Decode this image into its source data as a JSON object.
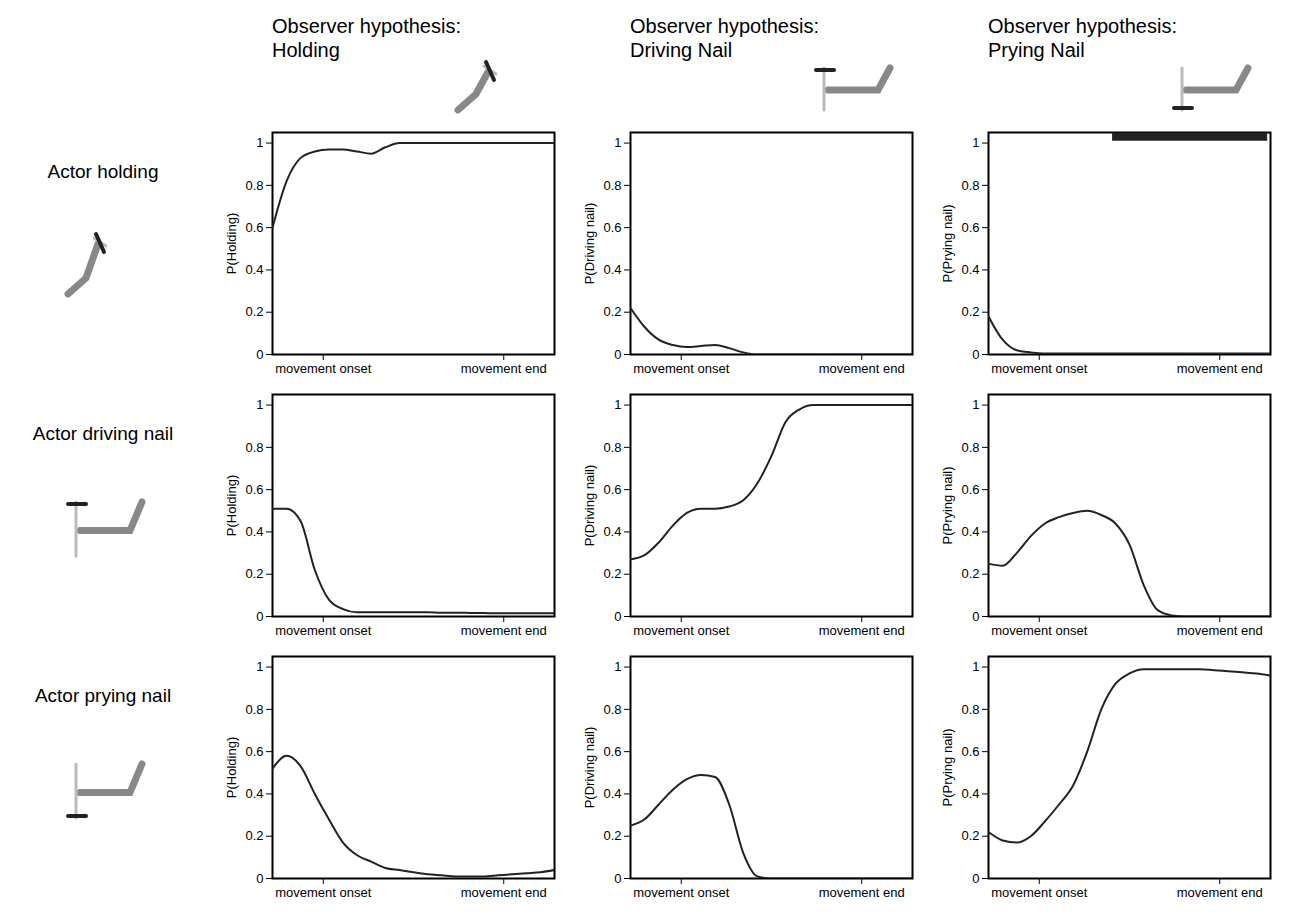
{
  "column_titles": [
    "Observer hypothesis: Holding",
    "Observer hypothesis: Driving Nail",
    "Observer hypothesis: Prying Nail"
  ],
  "row_labels": [
    "Actor holding",
    "Actor driving nail",
    "Actor prying nail"
  ],
  "chart_data": [
    {
      "type": "line",
      "ylabel": "P(Holding)",
      "color": "#222222",
      "x": [
        0,
        5,
        10,
        15,
        20,
        25,
        30,
        35,
        40,
        45,
        50,
        55,
        60,
        65,
        70,
        75,
        80,
        85,
        90,
        95,
        100
      ],
      "values": [
        0.6,
        0.82,
        0.93,
        0.96,
        0.97,
        0.97,
        0.96,
        0.95,
        0.98,
        1,
        1,
        1,
        1,
        1,
        1,
        1,
        1,
        1,
        1,
        1,
        1
      ],
      "xlim": [
        0,
        100
      ],
      "ylim": [
        0,
        1.05
      ],
      "xticks": [
        {
          "value": 18,
          "label": "movement onset"
        },
        {
          "value": 82,
          "label": "movement end"
        }
      ],
      "yticks": [
        0,
        0.2,
        0.4,
        0.6,
        0.8,
        1
      ]
    },
    {
      "type": "line",
      "ylabel": "P(Driving nail)",
      "color": "#222222",
      "x": [
        0,
        5,
        10,
        15,
        20,
        25,
        30,
        35,
        40,
        45,
        50,
        55,
        60,
        65,
        70,
        75,
        80,
        85,
        90,
        95,
        100
      ],
      "values": [
        0.22,
        0.13,
        0.07,
        0.045,
        0.035,
        0.04,
        0.045,
        0.03,
        0.01,
        0,
        0,
        0,
        0,
        0,
        0,
        0,
        0,
        0,
        0,
        0,
        0
      ],
      "xlim": [
        0,
        100
      ],
      "ylim": [
        0,
        1.05
      ],
      "xticks": [
        {
          "value": 18,
          "label": "movement onset"
        },
        {
          "value": 82,
          "label": "movement end"
        }
      ],
      "yticks": [
        0,
        0.2,
        0.4,
        0.6,
        0.8,
        1
      ]
    },
    {
      "type": "line",
      "ylabel": "P(Prying nail)",
      "color": "#222222",
      "x": [
        0,
        5,
        10,
        15,
        20,
        25,
        30,
        35,
        40,
        45,
        50,
        55,
        60,
        65,
        70,
        75,
        80,
        85,
        90,
        95,
        100
      ],
      "values": [
        0.18,
        0.07,
        0.02,
        0.01,
        0.005,
        0.005,
        0.005,
        0.005,
        0.005,
        0.005,
        0.005,
        0.005,
        0.005,
        0.005,
        0.005,
        0.005,
        0.005,
        0.005,
        0.005,
        0.005,
        0.005
      ],
      "xlim": [
        0,
        100
      ],
      "ylim": [
        0,
        1.05
      ],
      "xticks": [
        {
          "value": 18,
          "label": "movement onset"
        },
        {
          "value": 82,
          "label": "movement end"
        }
      ],
      "yticks": [
        0,
        0.2,
        0.4,
        0.6,
        0.8,
        1
      ],
      "annotation_bar": {
        "x": [
          44,
          99
        ],
        "y": 1.03
      }
    },
    {
      "type": "line",
      "ylabel": "P(Holding)",
      "color": "#222222",
      "x": [
        0,
        5,
        10,
        15,
        20,
        25,
        30,
        35,
        40,
        45,
        50,
        55,
        60,
        65,
        70,
        75,
        80,
        85,
        90,
        95,
        100
      ],
      "values": [
        0.51,
        0.51,
        0.45,
        0.22,
        0.08,
        0.035,
        0.02,
        0.02,
        0.02,
        0.02,
        0.02,
        0.02,
        0.018,
        0.018,
        0.017,
        0.016,
        0.015,
        0.015,
        0.015,
        0.015,
        0.015
      ],
      "xlim": [
        0,
        100
      ],
      "ylim": [
        0,
        1.05
      ],
      "xticks": [
        {
          "value": 18,
          "label": "movement onset"
        },
        {
          "value": 82,
          "label": "movement end"
        }
      ],
      "yticks": [
        0,
        0.2,
        0.4,
        0.6,
        0.8,
        1
      ]
    },
    {
      "type": "line",
      "ylabel": "P(Driving nail)",
      "color": "#222222",
      "x": [
        0,
        5,
        10,
        15,
        20,
        25,
        30,
        35,
        40,
        45,
        50,
        55,
        60,
        65,
        70,
        75,
        80,
        85,
        90,
        95,
        100
      ],
      "values": [
        0.27,
        0.29,
        0.35,
        0.43,
        0.49,
        0.51,
        0.51,
        0.52,
        0.55,
        0.63,
        0.76,
        0.92,
        0.98,
        1,
        1,
        1,
        1,
        1,
        1,
        1,
        1
      ],
      "xlim": [
        0,
        100
      ],
      "ylim": [
        0,
        1.05
      ],
      "xticks": [
        {
          "value": 18,
          "label": "movement onset"
        },
        {
          "value": 82,
          "label": "movement end"
        }
      ],
      "yticks": [
        0,
        0.2,
        0.4,
        0.6,
        0.8,
        1
      ]
    },
    {
      "type": "line",
      "ylabel": "P(Prying nail)",
      "color": "#222222",
      "x": [
        0,
        5,
        10,
        15,
        20,
        25,
        30,
        35,
        40,
        45,
        50,
        55,
        60,
        65,
        70,
        75,
        80,
        85,
        90,
        95,
        100
      ],
      "values": [
        0.25,
        0.24,
        0.3,
        0.38,
        0.44,
        0.47,
        0.49,
        0.5,
        0.48,
        0.44,
        0.34,
        0.15,
        0.03,
        0.005,
        0,
        0,
        0,
        0,
        0,
        0,
        0
      ],
      "xlim": [
        0,
        100
      ],
      "ylim": [
        0,
        1.05
      ],
      "xticks": [
        {
          "value": 18,
          "label": "movement onset"
        },
        {
          "value": 82,
          "label": "movement end"
        }
      ],
      "yticks": [
        0,
        0.2,
        0.4,
        0.6,
        0.8,
        1
      ]
    },
    {
      "type": "line",
      "ylabel": "P(Holding)",
      "color": "#222222",
      "x": [
        0,
        5,
        10,
        15,
        20,
        25,
        30,
        35,
        40,
        45,
        50,
        55,
        60,
        65,
        70,
        75,
        80,
        85,
        90,
        95,
        100
      ],
      "values": [
        0.52,
        0.58,
        0.53,
        0.4,
        0.28,
        0.17,
        0.11,
        0.08,
        0.05,
        0.04,
        0.03,
        0.02,
        0.015,
        0.01,
        0.01,
        0.01,
        0.015,
        0.02,
        0.025,
        0.03,
        0.04
      ],
      "xlim": [
        0,
        100
      ],
      "ylim": [
        0,
        1.05
      ],
      "xticks": [
        {
          "value": 18,
          "label": "movement onset"
        },
        {
          "value": 82,
          "label": "movement end"
        }
      ],
      "yticks": [
        0,
        0.2,
        0.4,
        0.6,
        0.8,
        1
      ]
    },
    {
      "type": "line",
      "ylabel": "P(Driving nail)",
      "color": "#222222",
      "x": [
        0,
        5,
        10,
        15,
        20,
        25,
        30,
        35,
        40,
        45,
        50,
        55,
        60,
        65,
        70,
        75,
        80,
        85,
        90,
        95,
        100
      ],
      "values": [
        0.25,
        0.28,
        0.35,
        0.42,
        0.47,
        0.49,
        0.48,
        0.35,
        0.12,
        0.01,
        0,
        0,
        0,
        0,
        0,
        0,
        0,
        0,
        0,
        0,
        0
      ],
      "xlim": [
        0,
        100
      ],
      "ylim": [
        0,
        1.05
      ],
      "xticks": [
        {
          "value": 18,
          "label": "movement onset"
        },
        {
          "value": 82,
          "label": "movement end"
        }
      ],
      "yticks": [
        0,
        0.2,
        0.4,
        0.6,
        0.8,
        1
      ]
    },
    {
      "type": "line",
      "ylabel": "P(Prying nail)",
      "color": "#222222",
      "x": [
        0,
        5,
        10,
        15,
        20,
        25,
        30,
        35,
        40,
        45,
        50,
        55,
        60,
        65,
        70,
        75,
        80,
        85,
        90,
        95,
        100
      ],
      "values": [
        0.22,
        0.18,
        0.17,
        0.2,
        0.27,
        0.35,
        0.44,
        0.6,
        0.8,
        0.92,
        0.97,
        0.99,
        0.99,
        0.99,
        0.99,
        0.99,
        0.985,
        0.98,
        0.975,
        0.97,
        0.96
      ],
      "xlim": [
        0,
        100
      ],
      "ylim": [
        0,
        1.05
      ],
      "xticks": [
        {
          "value": 18,
          "label": "movement onset"
        },
        {
          "value": 82,
          "label": "movement end"
        }
      ],
      "yticks": [
        0,
        0.2,
        0.4,
        0.6,
        0.8,
        1
      ]
    }
  ]
}
